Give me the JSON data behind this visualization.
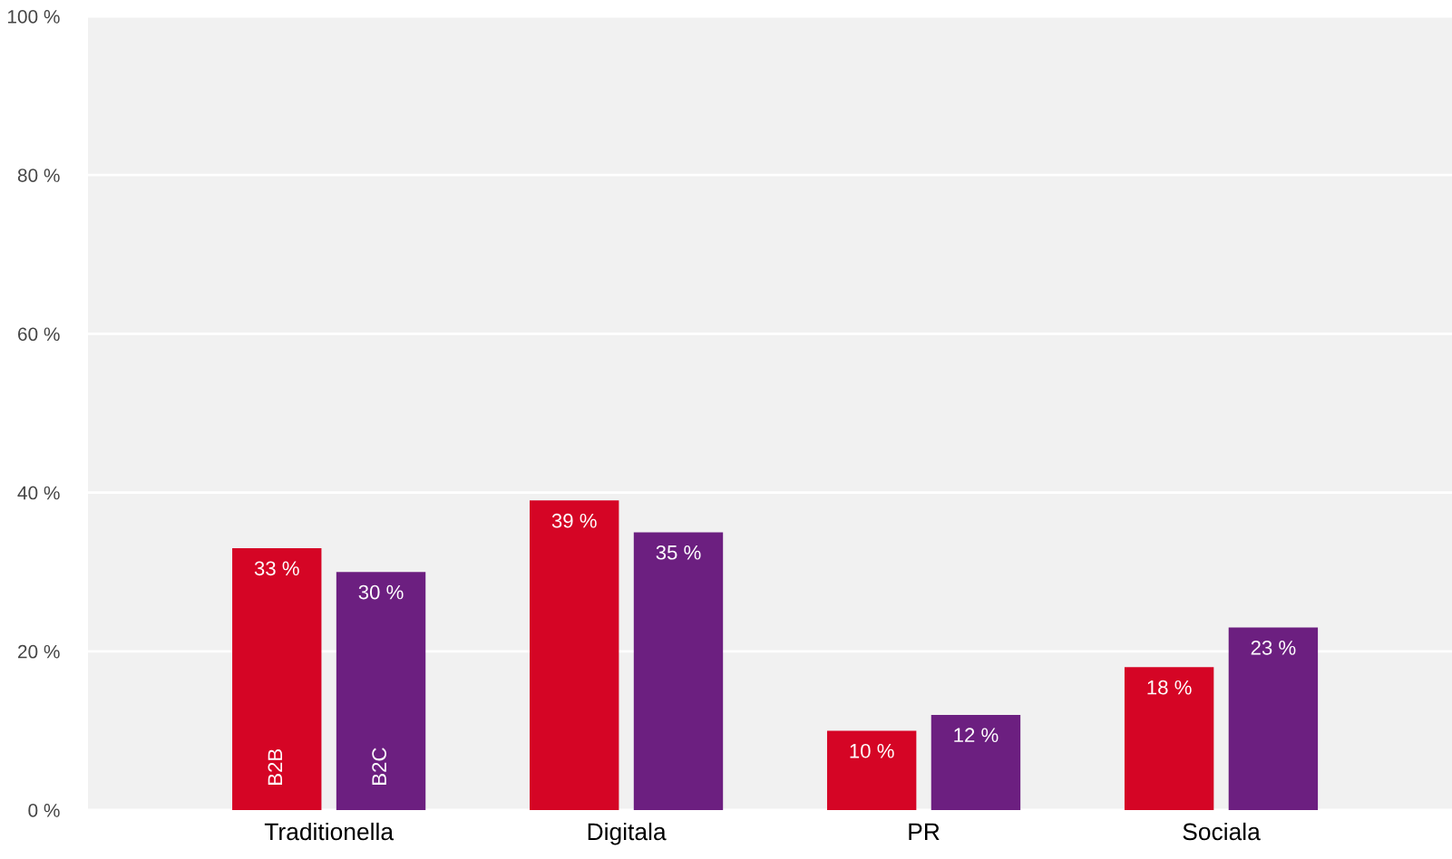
{
  "chart_data": {
    "type": "bar",
    "categories": [
      "Traditionella",
      "Digitala",
      "PR",
      "Sociala"
    ],
    "series": [
      {
        "name": "B2B",
        "color": "#d50525",
        "values": [
          33,
          39,
          10,
          18
        ],
        "value_labels": [
          "33 %",
          "39 %",
          "10 %",
          "18 %"
        ]
      },
      {
        "name": "B2C",
        "color": "#6c1f80",
        "values": [
          30,
          35,
          12,
          23
        ],
        "value_labels": [
          "30 %",
          "35 %",
          "12 %",
          "23 %"
        ]
      }
    ],
    "ylim": [
      0,
      100
    ],
    "yticks": [
      {
        "value": 0,
        "label": "0 %"
      },
      {
        "value": 20,
        "label": "20 %"
      },
      {
        "value": 40,
        "label": "40 %"
      },
      {
        "value": 60,
        "label": "60 %"
      },
      {
        "value": 80,
        "label": "80 %"
      },
      {
        "value": 100,
        "label": "100 %"
      }
    ],
    "grid": "y",
    "legend": false
  }
}
